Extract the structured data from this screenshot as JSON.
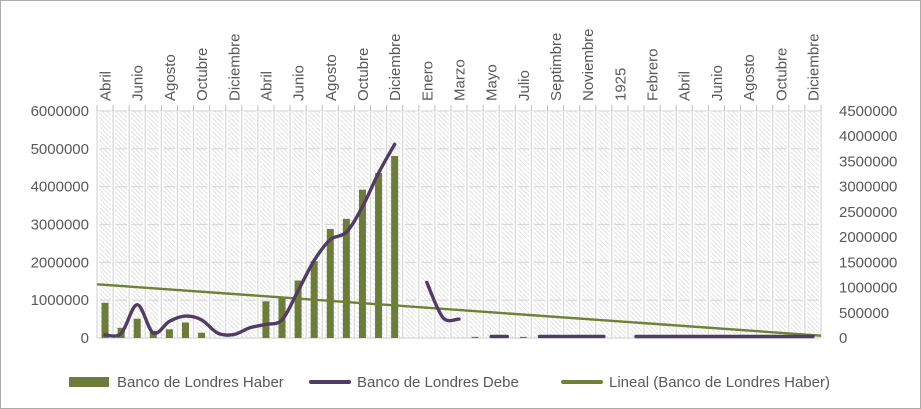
{
  "chart_data": {
    "type": "combo",
    "title": "",
    "x_axis": {
      "position": "top",
      "n_slots": 45,
      "label_every": 2,
      "visible_labels": [
        "Abril",
        "Junio",
        "Agosto",
        "Octubre",
        "Diciembre",
        "Abril",
        "Junio",
        "Agosto",
        "Octubre",
        "Diciembre",
        "Enero",
        "Marzo",
        "Mayo",
        "Julio",
        "Septimbre",
        "Noviembre",
        "1925",
        "Febrero",
        "Abril",
        "Junio",
        "Agosto",
        "Octubre",
        "Diciembre"
      ]
    },
    "y_axis_left": {
      "min": 0,
      "max": 6000000,
      "step": 1000000,
      "ticks": [
        "6000000",
        "5000000",
        "4000000",
        "3000000",
        "2000000",
        "1000000",
        "0"
      ]
    },
    "y_axis_right": {
      "min": 0,
      "max": 4500000,
      "step": 500000,
      "ticks": [
        "4500000",
        "4000000",
        "3500000",
        "3000000",
        "2500000",
        "2000000",
        "1500000",
        "1000000",
        "500000",
        "0"
      ]
    },
    "grid": {
      "horizontal": true,
      "vertical": true,
      "hatch_fill": true
    },
    "series": [
      {
        "name": "Banco de Londres Haber",
        "type": "bar",
        "color": "#6E7C3B",
        "values": [
          930000,
          270000,
          510000,
          190000,
          230000,
          410000,
          140000,
          null,
          null,
          null,
          970000,
          1050000,
          1520000,
          2030000,
          2880000,
          3150000,
          3920000,
          4360000,
          4810000,
          null,
          null,
          null,
          null,
          30000,
          null,
          null,
          30000,
          null,
          null,
          null,
          null,
          null,
          null,
          null,
          null,
          null,
          null,
          null,
          null,
          null,
          null,
          null,
          null,
          null,
          null
        ]
      },
      {
        "name": "Banco de Londres Debe",
        "type": "line",
        "color": "#4F3D63",
        "values": [
          80000,
          120000,
          880000,
          130000,
          440000,
          580000,
          480000,
          130000,
          90000,
          270000,
          360000,
          480000,
          1250000,
          2050000,
          2600000,
          2800000,
          3470000,
          4360000,
          5120000,
          null,
          1470000,
          540000,
          500000,
          null,
          40000,
          40000,
          null,
          40000,
          40000,
          40000,
          40000,
          40000,
          null,
          30000,
          30000,
          30000,
          30000,
          30000,
          30000,
          30000,
          30000,
          30000,
          30000,
          30000,
          30000
        ]
      },
      {
        "name": "Lineal (Banco de Londres Haber)",
        "type": "trendline",
        "color": "#6F8136",
        "start_value": 1420000,
        "end_value": 60000
      }
    ],
    "legend": {
      "position": "bottom"
    }
  },
  "colors": {
    "axis_text": "#595959",
    "gridline": "#d9d9d9",
    "tick": "#bfbfbf",
    "hatch": "#e2e2e2",
    "frame_border": "#ababab",
    "plot_bg": "#ffffff"
  }
}
